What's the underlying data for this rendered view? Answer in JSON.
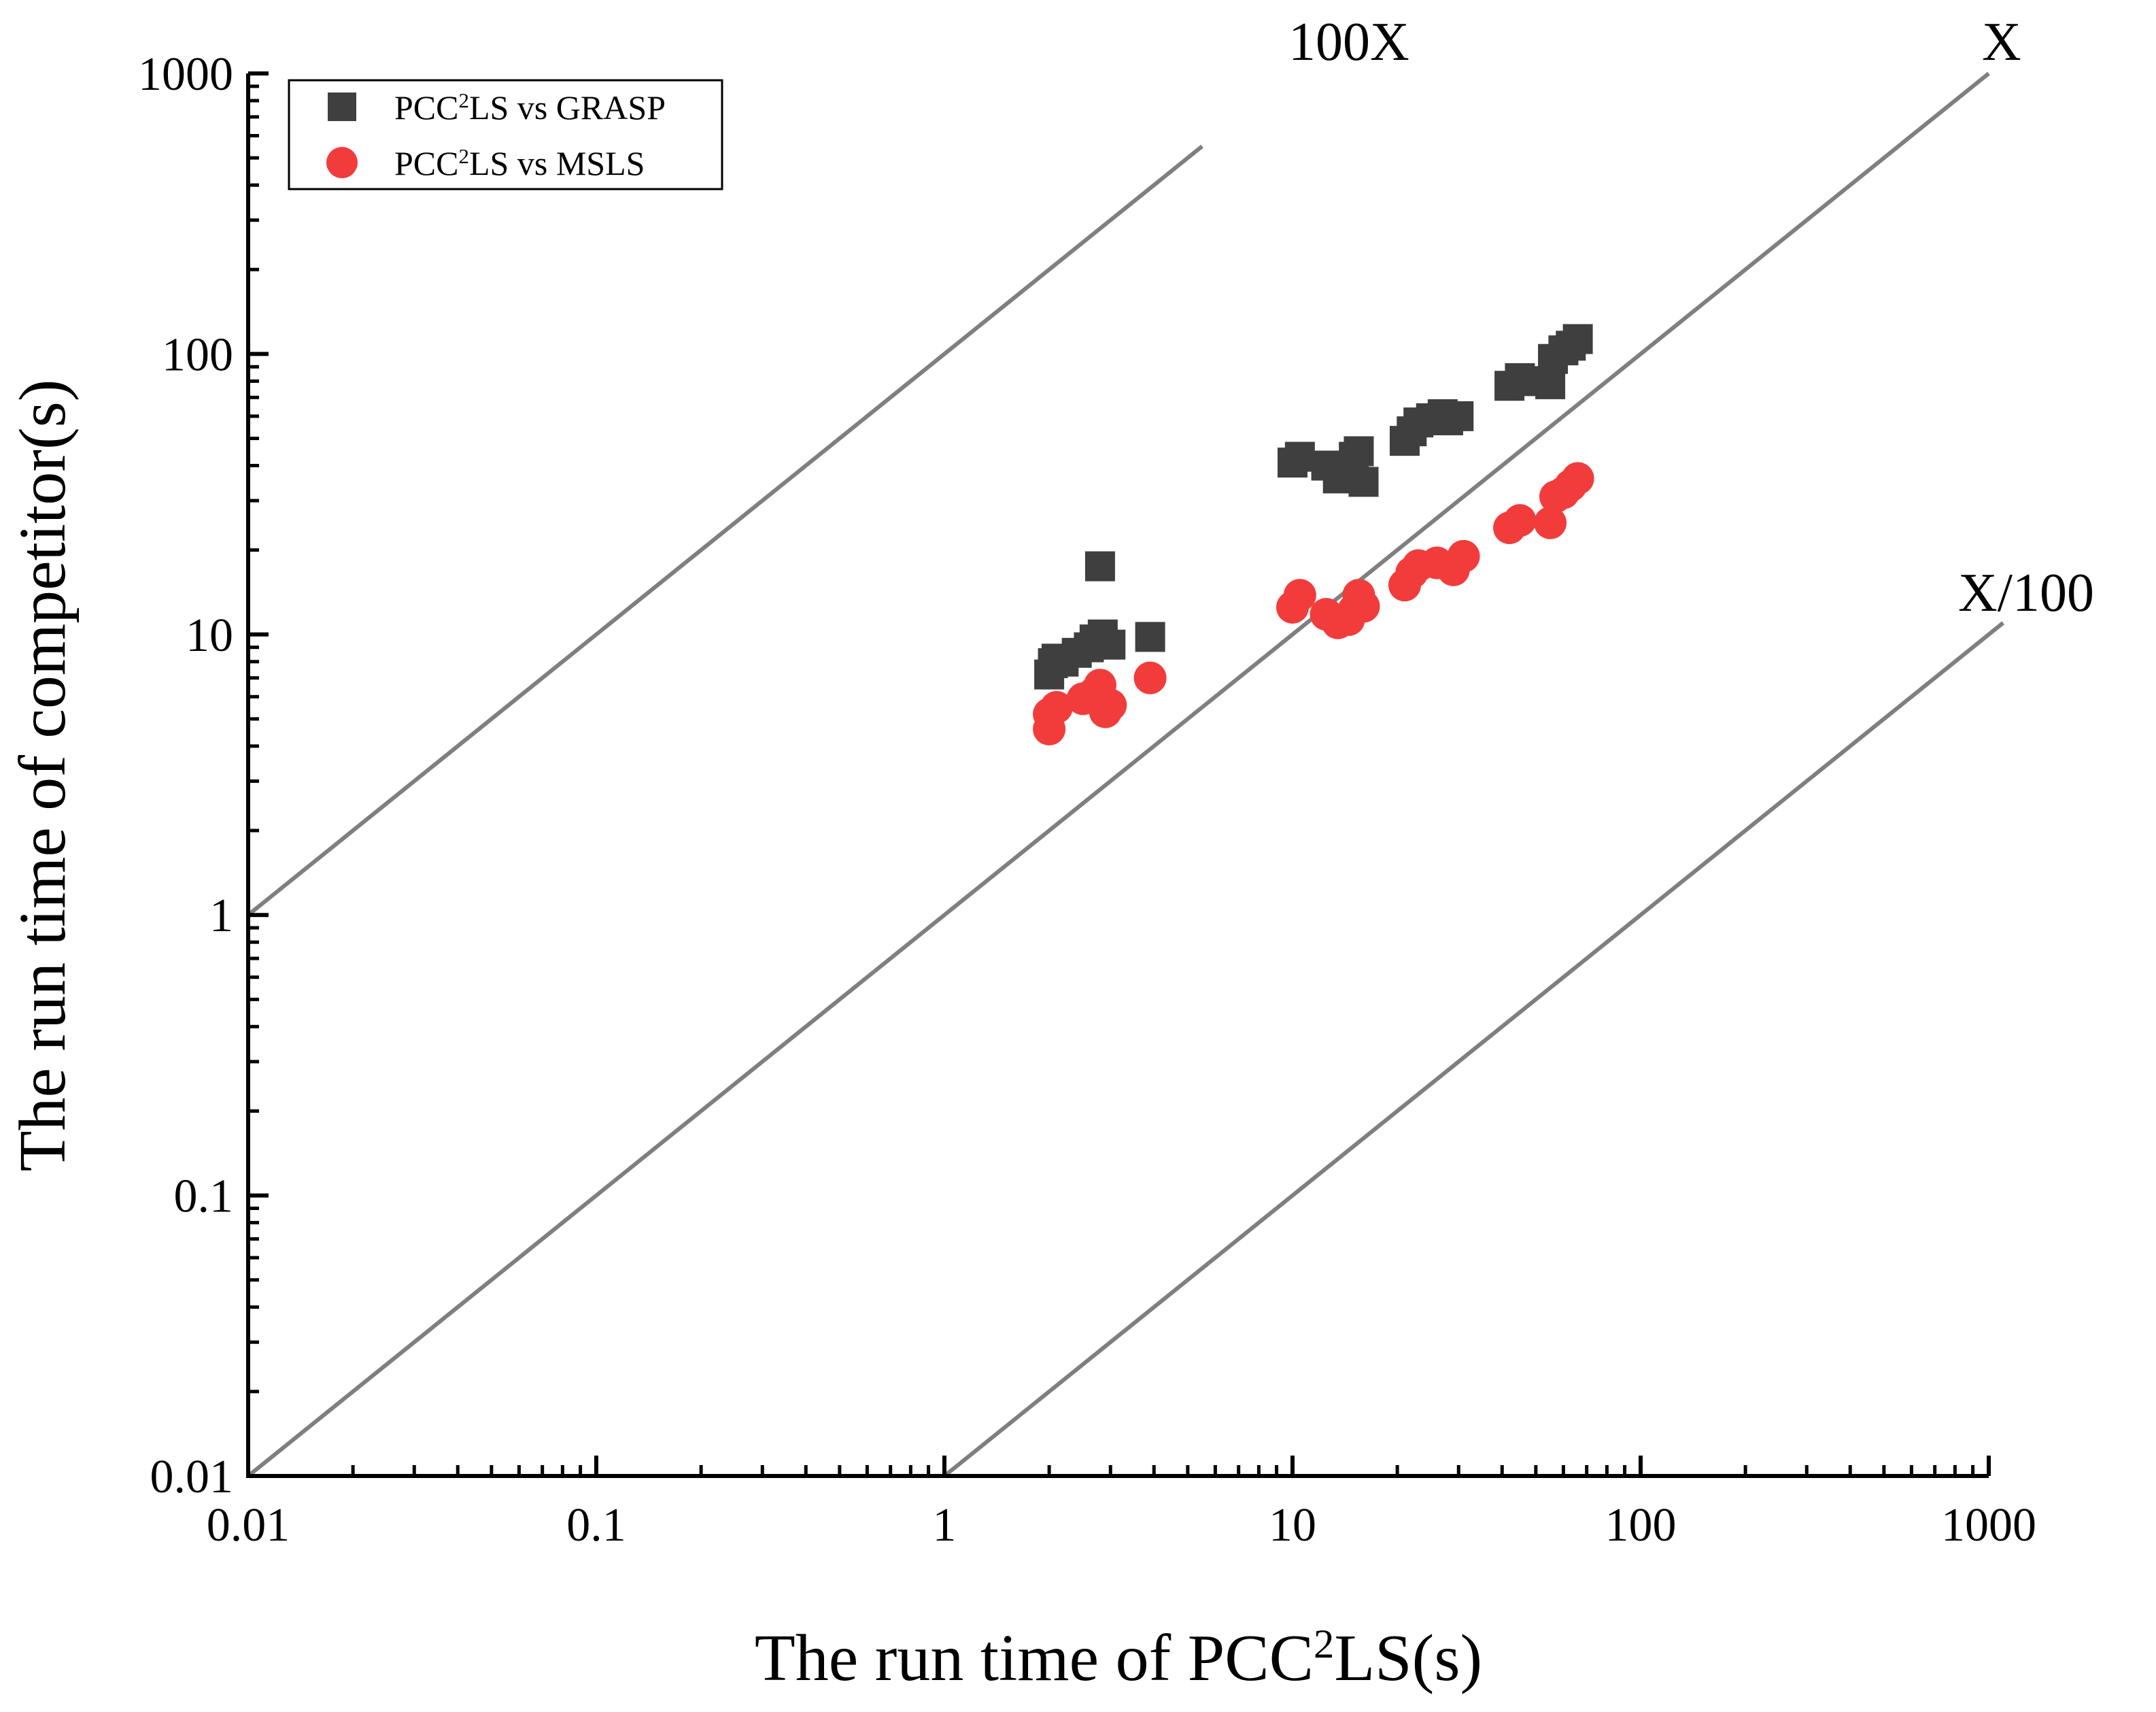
{
  "chart_data": {
    "type": "scatter",
    "x_scale": "log",
    "y_scale": "log",
    "xlim": [
      0.01,
      1000
    ],
    "ylim": [
      0.01,
      1000
    ],
    "xlabel": {
      "main": "The run time of PCC",
      "sup": "2",
      "tail": "LS(s)"
    },
    "ylabel": "The run time of competitor(s)",
    "x_tick_labels": [
      "0.01",
      "0.1",
      "1",
      "10",
      "100",
      "1000"
    ],
    "y_tick_labels": [
      "0.01",
      "0.1",
      "1",
      "10",
      "100",
      "1000"
    ],
    "reference_lines": [
      {
        "label": "100X",
        "factor": 100,
        "x_end": 5.5
      },
      {
        "label": "X",
        "factor": 1,
        "x_end": 1000
      },
      {
        "label": "X/100",
        "factor": 0.01,
        "x_end": 1100
      }
    ],
    "legend_position": "top-left",
    "series": [
      {
        "name": {
          "main": "PCC",
          "sup": "2",
          "tail": "LS vs GRASP"
        },
        "marker": "square",
        "color": "#3f3f3f",
        "points": [
          [
            2.0,
            7.2
          ],
          [
            2.05,
            7.9
          ],
          [
            2.1,
            8.2
          ],
          [
            2.2,
            8.0
          ],
          [
            2.4,
            8.6
          ],
          [
            2.6,
            9.0
          ],
          [
            2.7,
            9.6
          ],
          [
            2.85,
            10.0
          ],
          [
            3.0,
            9.2
          ],
          [
            2.8,
            17.5
          ],
          [
            3.9,
            9.8
          ],
          [
            10.0,
            41
          ],
          [
            10.5,
            43
          ],
          [
            12.5,
            40
          ],
          [
            13.5,
            36
          ],
          [
            14.5,
            38
          ],
          [
            15.0,
            43
          ],
          [
            15.5,
            45
          ],
          [
            16.0,
            35
          ],
          [
            21,
            49
          ],
          [
            22,
            53
          ],
          [
            23,
            57
          ],
          [
            25,
            59
          ],
          [
            27,
            61
          ],
          [
            28,
            58
          ],
          [
            30,
            60
          ],
          [
            42,
            77
          ],
          [
            45,
            82
          ],
          [
            47,
            80
          ],
          [
            55,
            78
          ],
          [
            56,
            96
          ],
          [
            60,
            103
          ],
          [
            63,
            107
          ],
          [
            66,
            113
          ]
        ]
      },
      {
        "name": {
          "main": "PCC",
          "sup": "2",
          "tail": "LS vs MSLS"
        },
        "marker": "circle",
        "color": "#f23c3c",
        "points": [
          [
            2.0,
            4.6
          ],
          [
            2.0,
            5.2
          ],
          [
            2.1,
            5.5
          ],
          [
            2.5,
            5.9
          ],
          [
            2.7,
            6.2
          ],
          [
            2.8,
            6.6
          ],
          [
            2.9,
            5.3
          ],
          [
            3.0,
            5.6
          ],
          [
            3.9,
            7.0
          ],
          [
            10.0,
            12.5
          ],
          [
            10.5,
            13.8
          ],
          [
            12.5,
            11.8
          ],
          [
            13.5,
            11.0
          ],
          [
            14.5,
            11.3
          ],
          [
            15.0,
            12.2
          ],
          [
            15.5,
            13.8
          ],
          [
            16.0,
            12.6
          ],
          [
            21,
            15.0
          ],
          [
            22,
            16.6
          ],
          [
            23,
            17.6
          ],
          [
            26,
            18.0
          ],
          [
            29,
            17.0
          ],
          [
            31,
            19.0
          ],
          [
            42,
            24.0
          ],
          [
            45,
            25.5
          ],
          [
            55,
            25.0
          ],
          [
            57,
            31.0
          ],
          [
            60,
            32.0
          ],
          [
            63,
            34.0
          ],
          [
            66,
            36.0
          ]
        ]
      }
    ]
  }
}
